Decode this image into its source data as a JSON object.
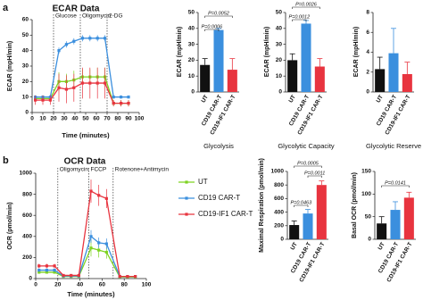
{
  "panels": [
    "a",
    "b"
  ],
  "chart_data": [
    {
      "type": "line",
      "title": "ECAR Data",
      "xlabel": "Time (minutes)",
      "ylabel": "ECAR (mpH/min)",
      "x": [
        3,
        10,
        17,
        25,
        32,
        39,
        47,
        54,
        61,
        68,
        76,
        83,
        90
      ],
      "xlim": [
        0,
        100
      ],
      "xticks": [
        0,
        10,
        20,
        30,
        40,
        50,
        60,
        70,
        80,
        90,
        100
      ],
      "ylim": [
        0,
        60
      ],
      "yticks": [
        0,
        10,
        20,
        30,
        40,
        50,
        60
      ],
      "injections": [
        {
          "label": "Glucose",
          "x": 20
        },
        {
          "label": "Oligomycin",
          "x": 45
        },
        {
          "label": "2-DG",
          "x": 70
        }
      ],
      "series": [
        {
          "color": "#7ed321",
          "values": [
            9,
            9,
            9,
            20,
            20,
            21,
            23,
            23,
            23,
            23,
            6,
            6,
            6
          ],
          "errors": [
            2,
            2,
            2,
            6,
            5,
            6,
            5,
            5,
            6,
            6,
            2,
            2,
            2
          ]
        },
        {
          "color": "#3b8fde",
          "values": [
            10,
            10,
            10,
            40,
            44,
            46,
            48,
            48,
            48,
            48,
            10,
            10,
            10
          ],
          "errors": [
            1,
            1,
            1,
            2,
            2,
            2,
            2,
            2,
            2,
            2,
            1,
            1,
            1
          ]
        },
        {
          "color": "#e8343f",
          "values": [
            8,
            8,
            8,
            16,
            15,
            16,
            19,
            19,
            19,
            19,
            6,
            6,
            6
          ],
          "errors": [
            3,
            3,
            3,
            9,
            9,
            9,
            10,
            10,
            10,
            10,
            2,
            2,
            2
          ]
        }
      ]
    },
    {
      "type": "bar",
      "xlabel": "Glycolysis",
      "ylabel": "ECAR (mpH/min)",
      "categories": [
        "UT",
        "CD19 CAR-T",
        "CD19-IF1 CAR-T"
      ],
      "values": [
        17,
        39,
        14
      ],
      "errors": [
        4,
        1,
        7
      ],
      "colors": [
        "#111111",
        "#3b8fde",
        "#e8343f"
      ],
      "ylim": [
        0,
        50
      ],
      "yticks": [
        0,
        10,
        20,
        30,
        40,
        50
      ],
      "annotations": [
        "P=0.0006",
        "P=0.0052"
      ]
    },
    {
      "type": "bar",
      "xlabel": "Glycolytic Capacity",
      "ylabel": "ECAR (mpH/min)",
      "categories": [
        "UT",
        "CD19 CAR-T",
        "CD19-IF1 CAR-T"
      ],
      "values": [
        20,
        43,
        16
      ],
      "errors": [
        4,
        2,
        5
      ],
      "colors": [
        "#111111",
        "#3b8fde",
        "#e8343f"
      ],
      "ylim": [
        0,
        50
      ],
      "yticks": [
        0,
        10,
        20,
        30,
        40,
        50
      ],
      "annotations": [
        "P=0.0012",
        "P=0.0026"
      ]
    },
    {
      "type": "bar",
      "xlabel": "Glycolytic Reserve",
      "ylabel": "ECAR (mpH/min)",
      "categories": [
        "UT",
        "CD19 CAR-T",
        "CD19-IF1 CAR-T"
      ],
      "values": [
        2.3,
        3.9,
        1.8
      ],
      "errors": [
        1.2,
        2.5,
        1.2
      ],
      "colors": [
        "#111111",
        "#3b8fde",
        "#e8343f"
      ],
      "ylim": [
        0,
        8
      ],
      "yticks": [
        0,
        2,
        4,
        6,
        8
      ],
      "annotations": []
    },
    {
      "type": "line",
      "title": "OCR Data",
      "xlabel": "Time (minutes)",
      "ylabel": "OCR (pmol/min)",
      "x": [
        3,
        10,
        17,
        25,
        32,
        39,
        50,
        57,
        64,
        76,
        83,
        90
      ],
      "xlim": [
        0,
        100
      ],
      "xticks": [
        0,
        20,
        40,
        60,
        80,
        100
      ],
      "ylim": [
        0,
        1000
      ],
      "yticks": [
        0,
        200,
        400,
        600,
        800,
        1000
      ],
      "injections": [
        {
          "label": "Oligomycin",
          "x": 20
        },
        {
          "label": "FCCP",
          "x": 48
        },
        {
          "label": "Rotenone+Antimycin",
          "x": 70
        }
      ],
      "legend": "right",
      "series": [
        {
          "name": "UT",
          "color": "#7ed321",
          "values": [
            60,
            60,
            60,
            20,
            20,
            20,
            290,
            270,
            250,
            15,
            15,
            15
          ],
          "errors": [
            10,
            10,
            10,
            5,
            5,
            5,
            80,
            70,
            60,
            5,
            5,
            5
          ]
        },
        {
          "name": "CD19 CAR-T",
          "color": "#3b8fde",
          "values": [
            80,
            80,
            80,
            25,
            25,
            25,
            400,
            340,
            330,
            20,
            20,
            20
          ],
          "errors": [
            15,
            15,
            15,
            5,
            5,
            5,
            60,
            50,
            50,
            5,
            5,
            5
          ]
        },
        {
          "name": "CD19-IF1 CAR-T",
          "color": "#e8343f",
          "values": [
            120,
            120,
            120,
            30,
            30,
            30,
            830,
            790,
            760,
            20,
            20,
            20
          ],
          "errors": [
            20,
            20,
            20,
            10,
            10,
            10,
            110,
            100,
            90,
            5,
            5,
            5
          ]
        }
      ]
    },
    {
      "type": "bar",
      "ylabel": "Maximal Respiration (pmol/min)",
      "categories": [
        "UT",
        "CD19 CAR-T",
        "CD19-IF1 CAR-T"
      ],
      "values": [
        210,
        380,
        800
      ],
      "errors": [
        60,
        60,
        60
      ],
      "colors": [
        "#111111",
        "#3b8fde",
        "#e8343f"
      ],
      "ylim": [
        0,
        1000
      ],
      "yticks": [
        0,
        200,
        400,
        600,
        800,
        1000
      ],
      "annotations": [
        "P=0.0005",
        "P=0.0011",
        "P=0.0463"
      ]
    },
    {
      "type": "bar",
      "ylabel": "Basal OCR (pmol/min)",
      "categories": [
        "UT",
        "CD19 CAR-T",
        "CD19-IF1 CAR-T"
      ],
      "values": [
        35,
        65,
        92
      ],
      "errors": [
        15,
        18,
        12
      ],
      "colors": [
        "#111111",
        "#3b8fde",
        "#e8343f"
      ],
      "ylim": [
        0,
        150
      ],
      "yticks": [
        0,
        50,
        100,
        150
      ],
      "annotations": [
        "P=0.0141"
      ]
    }
  ]
}
